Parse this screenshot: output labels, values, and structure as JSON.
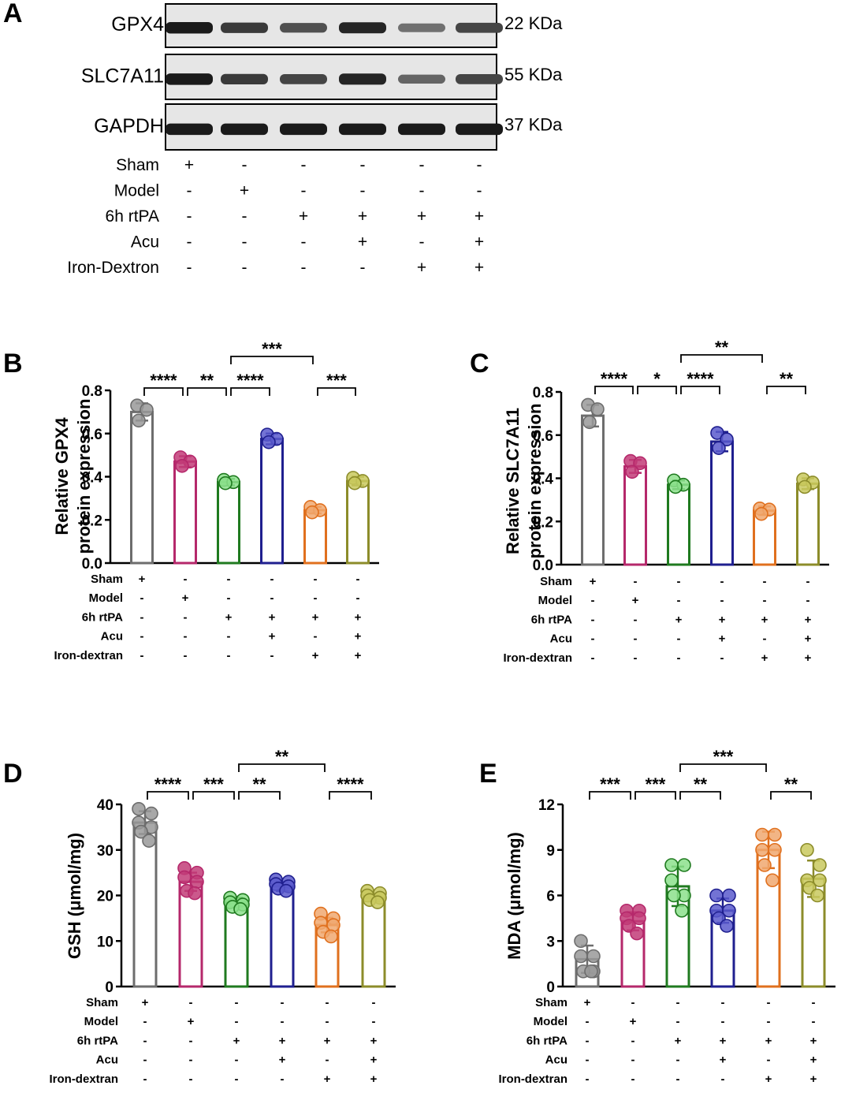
{
  "panel_a": {
    "letter": "A",
    "blots": [
      {
        "protein": "GPX4",
        "size": "22 KDa",
        "intensity": [
          0.95,
          0.8,
          0.7,
          0.9,
          0.55,
          0.75
        ]
      },
      {
        "protein": "SLC7A11",
        "size": "55 KDa",
        "intensity": [
          0.95,
          0.8,
          0.75,
          0.9,
          0.6,
          0.75
        ]
      },
      {
        "protein": "GAPDH",
        "size": "37 KDa",
        "intensity": [
          0.95,
          0.95,
          0.95,
          0.95,
          0.95,
          0.95
        ]
      }
    ],
    "treatments": [
      {
        "label": "Sham",
        "marks": [
          "+",
          "-",
          "-",
          "-",
          "-",
          "-"
        ]
      },
      {
        "label": "Model",
        "marks": [
          "-",
          "+",
          "-",
          "-",
          "-",
          "-"
        ]
      },
      {
        "label": "6h rtPA",
        "marks": [
          "-",
          "-",
          "+",
          "+",
          "+",
          "+"
        ]
      },
      {
        "label": "Acu",
        "marks": [
          "-",
          "-",
          "-",
          "+",
          "-",
          "+"
        ]
      },
      {
        "label": "Iron-Dextron",
        "marks": [
          "-",
          "-",
          "-",
          "-",
          "+",
          "+"
        ]
      }
    ]
  },
  "group_colors": [
    "#6d6d6d",
    "#b5286b",
    "#1f7a1f",
    "#1f1f8f",
    "#e0701e",
    "#8c8c2a"
  ],
  "point_fill": [
    "#999999",
    "#c23c78",
    "#8ce08c",
    "#5a5acc",
    "#f0a870",
    "#c9c95e"
  ],
  "chart_data": [
    {
      "panel": "B",
      "type": "bar",
      "ylabel": [
        "Relative GPX4",
        "protein expression"
      ],
      "ylim": [
        0,
        0.8
      ],
      "yticks": [
        "0.0",
        "0.2",
        "0.4",
        "0.6",
        "0.8"
      ],
      "tick_values": [
        0,
        0.2,
        0.4,
        0.6,
        0.8
      ],
      "values": [
        0.7,
        0.47,
        0.375,
        0.575,
        0.245,
        0.38
      ],
      "errors": [
        0.04,
        0.025,
        0.015,
        0.025,
        0.015,
        0.02
      ],
      "points": [
        [
          0.73,
          0.71,
          0.66
        ],
        [
          0.49,
          0.47,
          0.45
        ],
        [
          0.385,
          0.375,
          0.37
        ],
        [
          0.595,
          0.575,
          0.56
        ],
        [
          0.26,
          0.245,
          0.235
        ],
        [
          0.395,
          0.38,
          0.37
        ]
      ],
      "treatments": [
        {
          "label": "Sham",
          "marks": [
            "+",
            "-",
            "-",
            "-",
            "-",
            "-"
          ]
        },
        {
          "label": "Model",
          "marks": [
            "-",
            "+",
            "-",
            "-",
            "-",
            "-"
          ]
        },
        {
          "label": "6h rtPA",
          "marks": [
            "-",
            "-",
            "+",
            "+",
            "+",
            "+"
          ]
        },
        {
          "label": "Acu",
          "marks": [
            "-",
            "-",
            "-",
            "+",
            "-",
            "+"
          ]
        },
        {
          "label": "Iron-dextran",
          "marks": [
            "-",
            "-",
            "-",
            "-",
            "+",
            "+"
          ]
        }
      ],
      "significance": [
        {
          "from": 0,
          "to": 1,
          "label": "****",
          "level": 0
        },
        {
          "from": 1,
          "to": 2,
          "label": "**",
          "level": 0
        },
        {
          "from": 2,
          "to": 3,
          "label": "****",
          "level": 0
        },
        {
          "from": 4,
          "to": 5,
          "label": "***",
          "level": 0
        },
        {
          "from": 2,
          "to": 4,
          "label": "***",
          "level": 1
        }
      ]
    },
    {
      "panel": "C",
      "type": "bar",
      "ylabel": [
        "Relative SLC7A11",
        "protein expression"
      ],
      "ylim": [
        0,
        0.8
      ],
      "yticks": [
        "0.0",
        "0.2",
        "0.4",
        "0.6",
        "0.8"
      ],
      "tick_values": [
        0,
        0.2,
        0.4,
        0.6,
        0.8
      ],
      "values": [
        0.69,
        0.455,
        0.37,
        0.57,
        0.25,
        0.375
      ],
      "errors": [
        0.05,
        0.03,
        0.02,
        0.045,
        0.02,
        0.025
      ],
      "points": [
        [
          0.74,
          0.72,
          0.66
        ],
        [
          0.48,
          0.47,
          0.43
        ],
        [
          0.39,
          0.37,
          0.36
        ],
        [
          0.61,
          0.58,
          0.54
        ],
        [
          0.26,
          0.255,
          0.235
        ],
        [
          0.395,
          0.38,
          0.36
        ]
      ],
      "treatments": [
        {
          "label": "Sham",
          "marks": [
            "+",
            "-",
            "-",
            "-",
            "-",
            "-"
          ]
        },
        {
          "label": "Model",
          "marks": [
            "-",
            "+",
            "-",
            "-",
            "-",
            "-"
          ]
        },
        {
          "label": "6h rtPA",
          "marks": [
            "-",
            "-",
            "+",
            "+",
            "+",
            "+"
          ]
        },
        {
          "label": "Acu",
          "marks": [
            "-",
            "-",
            "-",
            "+",
            "-",
            "+"
          ]
        },
        {
          "label": "Iron-dextran",
          "marks": [
            "-",
            "-",
            "-",
            "-",
            "+",
            "+"
          ]
        }
      ],
      "significance": [
        {
          "from": 0,
          "to": 1,
          "label": "****",
          "level": 0
        },
        {
          "from": 1,
          "to": 2,
          "label": "*",
          "level": 0
        },
        {
          "from": 2,
          "to": 3,
          "label": "****",
          "level": 0
        },
        {
          "from": 4,
          "to": 5,
          "label": "**",
          "level": 0
        },
        {
          "from": 2,
          "to": 4,
          "label": "**",
          "level": 1
        }
      ]
    },
    {
      "panel": "D",
      "type": "bar",
      "ylabel": [
        "GSH (μmol/mg)"
      ],
      "ylim": [
        0,
        40
      ],
      "yticks": [
        "0",
        "10",
        "20",
        "30",
        "40"
      ],
      "tick_values": [
        0,
        10,
        20,
        30,
        40
      ],
      "values": [
        36,
        23,
        18.5,
        22,
        13.5,
        19.5
      ],
      "errors": [
        2.5,
        2.0,
        1.0,
        1.0,
        1.6,
        0.8
      ],
      "points": [
        [
          39,
          38,
          36,
          35,
          34,
          32
        ],
        [
          26,
          25,
          24,
          23,
          21,
          20.5
        ],
        [
          19.5,
          19,
          18.5,
          18,
          17.5,
          17
        ],
        [
          23.5,
          23,
          22.5,
          22,
          21.5,
          21
        ],
        [
          16,
          15,
          14,
          13.5,
          12,
          11
        ],
        [
          21,
          20.5,
          20,
          19.5,
          19,
          18.5
        ]
      ],
      "treatments": [
        {
          "label": "Sham",
          "marks": [
            "+",
            "-",
            "-",
            "-",
            "-",
            "-"
          ]
        },
        {
          "label": "Model",
          "marks": [
            "-",
            "+",
            "-",
            "-",
            "-",
            "-"
          ]
        },
        {
          "label": "6h rtPA",
          "marks": [
            "-",
            "-",
            "+",
            "+",
            "+",
            "+"
          ]
        },
        {
          "label": "Acu",
          "marks": [
            "-",
            "-",
            "-",
            "+",
            "-",
            "+"
          ]
        },
        {
          "label": "Iron-dextran",
          "marks": [
            "-",
            "-",
            "-",
            "-",
            "+",
            "+"
          ]
        }
      ],
      "significance": [
        {
          "from": 0,
          "to": 1,
          "label": "****",
          "level": 0
        },
        {
          "from": 1,
          "to": 2,
          "label": "***",
          "level": 0
        },
        {
          "from": 2,
          "to": 3,
          "label": "**",
          "level": 0
        },
        {
          "from": 4,
          "to": 5,
          "label": "****",
          "level": 0
        },
        {
          "from": 2,
          "to": 4,
          "label": "**",
          "level": 1
        }
      ]
    },
    {
      "panel": "E",
      "type": "bar",
      "ylabel": [
        "MDA (μmol/mg)"
      ],
      "ylim": [
        0,
        12
      ],
      "yticks": [
        "0",
        "3",
        "6",
        "9",
        "12"
      ],
      "tick_values": [
        0,
        3,
        6,
        9,
        12
      ],
      "values": [
        1.8,
        4.3,
        6.6,
        5.0,
        9.0,
        7.1
      ],
      "errors": [
        0.9,
        0.6,
        1.3,
        0.8,
        1.2,
        1.2
      ],
      "points": [
        [
          3,
          2,
          2,
          1,
          1,
          1
        ],
        [
          5,
          5,
          4.5,
          4.5,
          4,
          3.5
        ],
        [
          8,
          8,
          7,
          6,
          6,
          5
        ],
        [
          6,
          6,
          5,
          5,
          4.5,
          4
        ],
        [
          10,
          10,
          9,
          9,
          8,
          7
        ],
        [
          9,
          8,
          7,
          7,
          6.5,
          6
        ]
      ],
      "treatments": [
        {
          "label": "Sham",
          "marks": [
            "+",
            "-",
            "-",
            "-",
            "-",
            "-"
          ]
        },
        {
          "label": "Model",
          "marks": [
            "-",
            "+",
            "-",
            "-",
            "-",
            "-"
          ]
        },
        {
          "label": "6h rtPA",
          "marks": [
            "-",
            "-",
            "+",
            "+",
            "+",
            "+"
          ]
        },
        {
          "label": "Acu",
          "marks": [
            "-",
            "-",
            "-",
            "+",
            "-",
            "+"
          ]
        },
        {
          "label": "Iron-dextran",
          "marks": [
            "-",
            "-",
            "-",
            "-",
            "+",
            "+"
          ]
        }
      ],
      "significance": [
        {
          "from": 0,
          "to": 1,
          "label": "***",
          "level": 0
        },
        {
          "from": 1,
          "to": 2,
          "label": "***",
          "level": 0
        },
        {
          "from": 2,
          "to": 3,
          "label": "**",
          "level": 0
        },
        {
          "from": 4,
          "to": 5,
          "label": "**",
          "level": 0
        },
        {
          "from": 2,
          "to": 4,
          "label": "***",
          "level": 1
        }
      ]
    }
  ]
}
